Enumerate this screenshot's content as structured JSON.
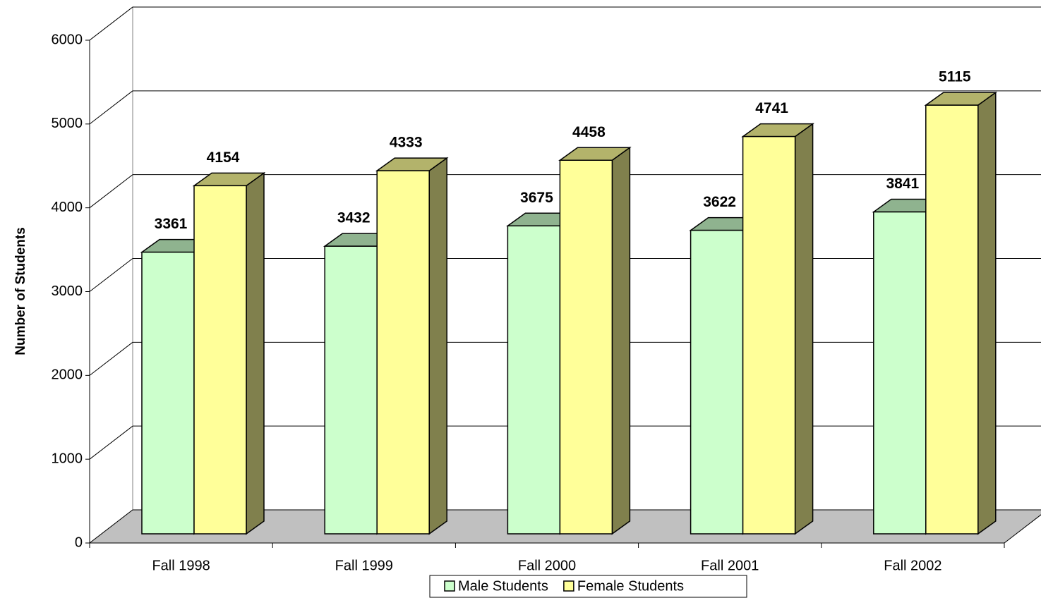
{
  "chart_data": {
    "type": "bar3d",
    "y_label": "Number of Students",
    "categories": [
      "Fall 1998",
      "Fall 1999",
      "Fall 2000",
      "Fall 2001",
      "Fall 2002"
    ],
    "series": [
      {
        "name": "Male Students",
        "color": "#ccffcc",
        "values": [
          3361,
          3432,
          3675,
          3622,
          3841
        ]
      },
      {
        "name": "Female Students",
        "color": "#ffff99",
        "values": [
          4154,
          4333,
          4458,
          4741,
          5115
        ]
      }
    ],
    "ylim": [
      0,
      6000
    ],
    "yticks": [
      0,
      1000,
      2000,
      3000,
      4000,
      5000,
      6000
    ],
    "grid": true,
    "legend": "bottom"
  }
}
